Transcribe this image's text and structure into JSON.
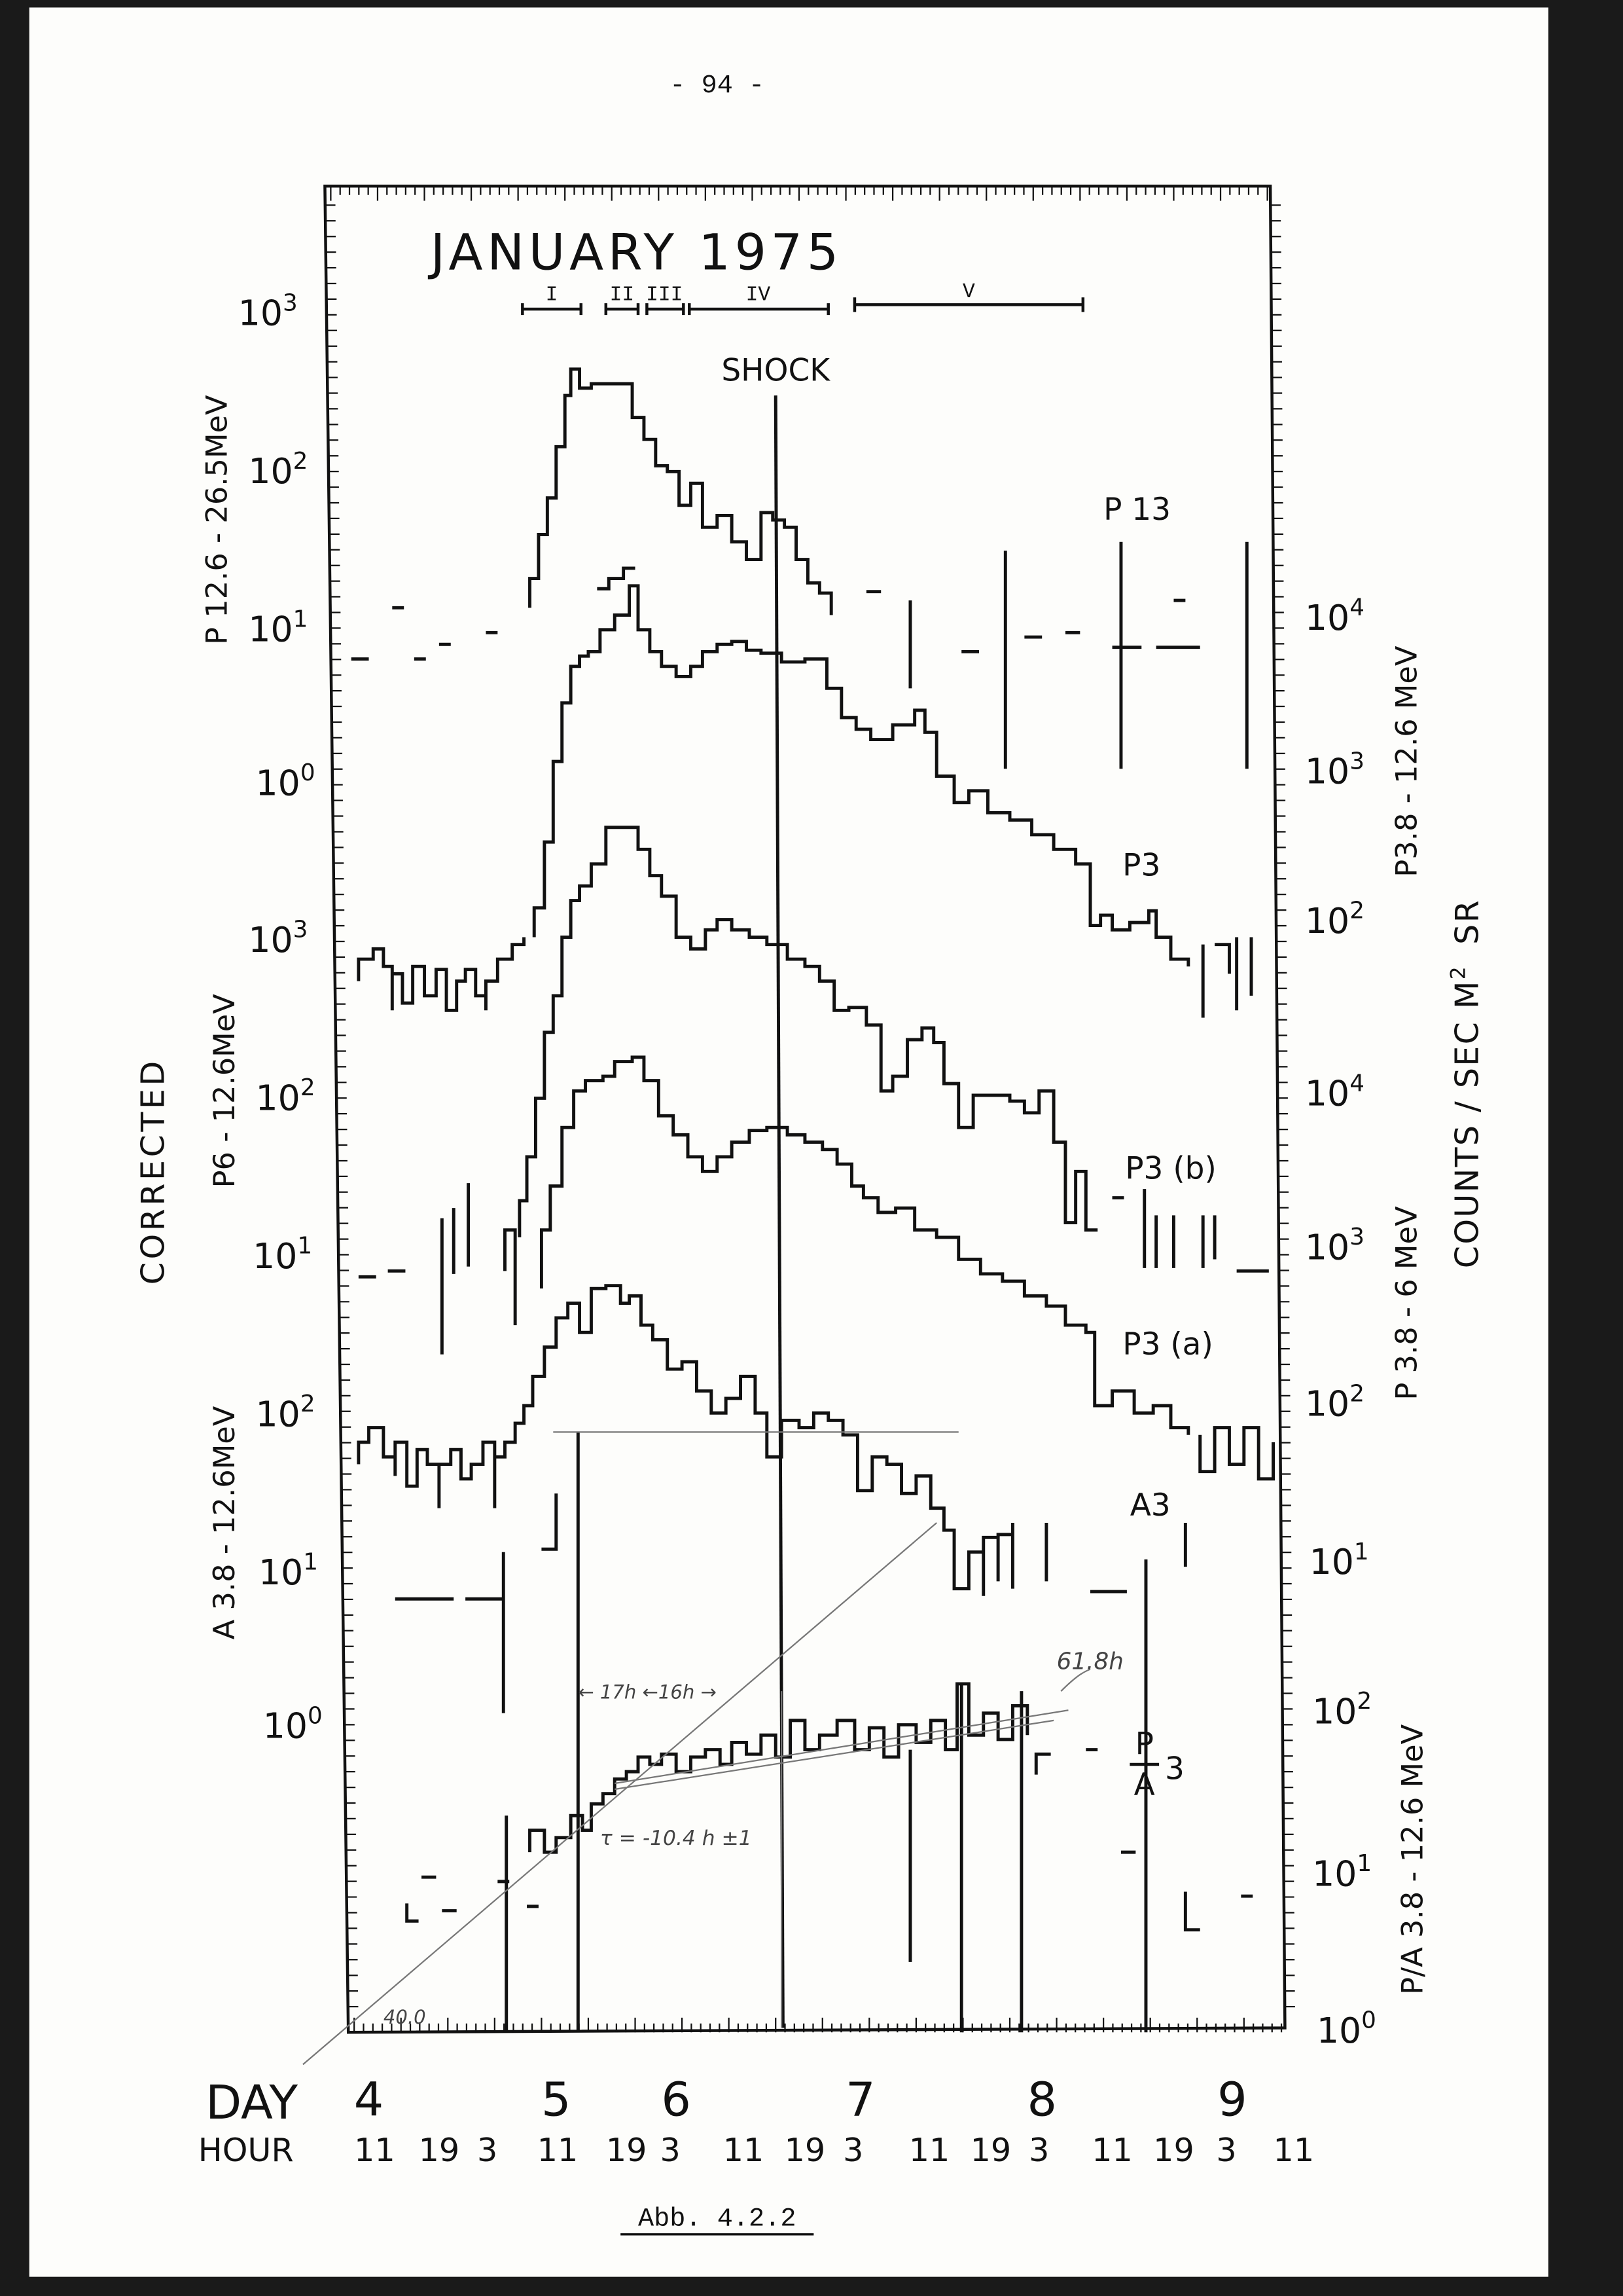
{
  "page_number": "- 94 -",
  "figure": {
    "title": "JANUARY 1975",
    "periods": [
      "I",
      "II",
      "III",
      "IV",
      "V"
    ],
    "shock_label": "SHOCK",
    "trace_labels": [
      "P 13",
      "P3",
      "P3 (b)",
      "P3 (a)",
      "A3"
    ],
    "ratio_label": {
      "numerator": "P",
      "denominator": "A",
      "suffix": "3"
    },
    "left_axis_labels": [
      "P 12.6 - 26.5MeV",
      "CORRECTED",
      "P6 - 12.6MeV",
      "A 3.8 - 12.6MeV"
    ],
    "right_axis_labels": [
      "P3.8 - 12.6 MeV",
      "P 3.8 - 6 MeV",
      "COUNTS / SEC M",
      "2",
      "SR",
      "P/A 3.8 - 12.6 MeV"
    ],
    "left_ticks": [
      {
        "base": "10",
        "exp": "3"
      },
      {
        "base": "10",
        "exp": "2"
      },
      {
        "base": "10",
        "exp": "1"
      },
      {
        "base": "10",
        "exp": "0"
      },
      {
        "base": "10",
        "exp": "3"
      },
      {
        "base": "10",
        "exp": "2"
      },
      {
        "base": "10",
        "exp": "1"
      },
      {
        "base": "10",
        "exp": "2"
      },
      {
        "base": "10",
        "exp": "1"
      },
      {
        "base": "10",
        "exp": "0"
      }
    ],
    "right_ticks": [
      {
        "base": "10",
        "exp": "4"
      },
      {
        "base": "10",
        "exp": "3"
      },
      {
        "base": "10",
        "exp": "2"
      },
      {
        "base": "10",
        "exp": "4"
      },
      {
        "base": "10",
        "exp": "3"
      },
      {
        "base": "10",
        "exp": "2"
      },
      {
        "base": "10",
        "exp": "1"
      },
      {
        "base": "10",
        "exp": "2"
      },
      {
        "base": "10",
        "exp": "1"
      },
      {
        "base": "10",
        "exp": "0"
      }
    ],
    "day_label": "DAY",
    "days": [
      "4",
      "5",
      "6",
      "7",
      "8",
      "9"
    ],
    "hour_label": "HOUR",
    "hours": [
      "11",
      "19",
      "3",
      "11",
      "19",
      "3",
      "11",
      "19",
      "3",
      "11",
      "19",
      "3",
      "11",
      "19",
      "3",
      "11"
    ],
    "annotations": [
      "61.8h",
      "τ = -10.4 h ±1",
      "← 17h ←16h →",
      "40.0"
    ]
  },
  "caption": "Abb. 4.2.2"
}
